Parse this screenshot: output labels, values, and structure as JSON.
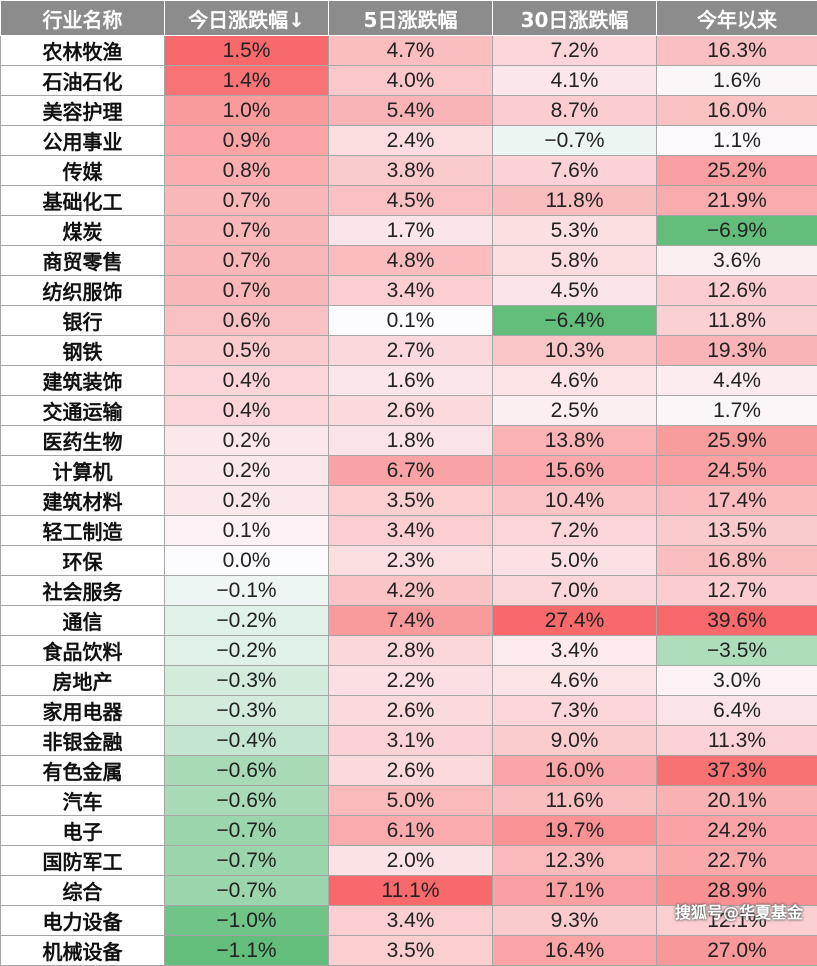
{
  "table": {
    "headers": [
      "行业名称",
      "今日涨跌幅↓",
      "5日涨跌幅",
      "30日涨跌幅",
      "今年以来"
    ],
    "rows": [
      {
        "name": "农林牧渔",
        "today": 1.5,
        "d5": 4.7,
        "d30": 7.2,
        "ytd": 16.3
      },
      {
        "name": "石油石化",
        "today": 1.4,
        "d5": 4.0,
        "d30": 4.1,
        "ytd": 1.6
      },
      {
        "name": "美容护理",
        "today": 1.0,
        "d5": 5.4,
        "d30": 8.7,
        "ytd": 16.0
      },
      {
        "name": "公用事业",
        "today": 0.9,
        "d5": 2.4,
        "d30": -0.7,
        "ytd": 1.1
      },
      {
        "name": "传媒",
        "today": 0.8,
        "d5": 3.8,
        "d30": 7.6,
        "ytd": 25.2
      },
      {
        "name": "基础化工",
        "today": 0.7,
        "d5": 4.5,
        "d30": 11.8,
        "ytd": 21.9
      },
      {
        "name": "煤炭",
        "today": 0.7,
        "d5": 1.7,
        "d30": 5.3,
        "ytd": -6.9
      },
      {
        "name": "商贸零售",
        "today": 0.7,
        "d5": 4.8,
        "d30": 5.8,
        "ytd": 3.6
      },
      {
        "name": "纺织服饰",
        "today": 0.7,
        "d5": 3.4,
        "d30": 4.5,
        "ytd": 12.6
      },
      {
        "name": "银行",
        "today": 0.6,
        "d5": 0.1,
        "d30": -6.4,
        "ytd": 11.8
      },
      {
        "name": "钢铁",
        "today": 0.5,
        "d5": 2.7,
        "d30": 10.3,
        "ytd": 19.3
      },
      {
        "name": "建筑装饰",
        "today": 0.4,
        "d5": 1.6,
        "d30": 4.6,
        "ytd": 4.4
      },
      {
        "name": "交通运输",
        "today": 0.4,
        "d5": 2.6,
        "d30": 2.5,
        "ytd": 1.7
      },
      {
        "name": "医药生物",
        "today": 0.2,
        "d5": 1.8,
        "d30": 13.8,
        "ytd": 25.9
      },
      {
        "name": "计算机",
        "today": 0.2,
        "d5": 6.7,
        "d30": 15.6,
        "ytd": 24.5
      },
      {
        "name": "建筑材料",
        "today": 0.2,
        "d5": 3.5,
        "d30": 10.4,
        "ytd": 17.4
      },
      {
        "name": "轻工制造",
        "today": 0.1,
        "d5": 3.4,
        "d30": 7.2,
        "ytd": 13.5
      },
      {
        "name": "环保",
        "today": 0.0,
        "d5": 2.3,
        "d30": 5.0,
        "ytd": 16.8
      },
      {
        "name": "社会服务",
        "today": -0.1,
        "d5": 4.2,
        "d30": 7.0,
        "ytd": 12.7
      },
      {
        "name": "通信",
        "today": -0.2,
        "d5": 7.4,
        "d30": 27.4,
        "ytd": 39.6
      },
      {
        "name": "食品饮料",
        "today": -0.2,
        "d5": 2.8,
        "d30": 3.4,
        "ytd": -3.5
      },
      {
        "name": "房地产",
        "today": -0.3,
        "d5": 2.2,
        "d30": 4.6,
        "ytd": 3.0
      },
      {
        "name": "家用电器",
        "today": -0.3,
        "d5": 2.6,
        "d30": 7.3,
        "ytd": 6.4
      },
      {
        "name": "非银金融",
        "today": -0.4,
        "d5": 3.1,
        "d30": 9.0,
        "ytd": 11.3
      },
      {
        "name": "有色金属",
        "today": -0.6,
        "d5": 2.6,
        "d30": 16.0,
        "ytd": 37.3
      },
      {
        "name": "汽车",
        "today": -0.6,
        "d5": 5.0,
        "d30": 11.6,
        "ytd": 20.1
      },
      {
        "name": "电子",
        "today": -0.7,
        "d5": 6.1,
        "d30": 19.7,
        "ytd": 24.2
      },
      {
        "name": "国防军工",
        "today": -0.7,
        "d5": 2.0,
        "d30": 12.3,
        "ytd": 22.7
      },
      {
        "name": "综合",
        "today": -0.7,
        "d5": 11.1,
        "d30": 17.1,
        "ytd": 28.9
      },
      {
        "name": "电力设备",
        "today": -1.0,
        "d5": 3.4,
        "d30": 9.3,
        "ytd": 12.1
      },
      {
        "name": "机械设备",
        "today": -1.1,
        "d5": 3.5,
        "d30": 16.4,
        "ytd": 27.0
      }
    ]
  },
  "colors": {
    "header_bg": "#8c8c8c",
    "positive_max": "#f8696b",
    "negative_max": "#63be7b",
    "neutral": "#fcfcff"
  },
  "watermark": "搜狐号@华夏基金"
}
